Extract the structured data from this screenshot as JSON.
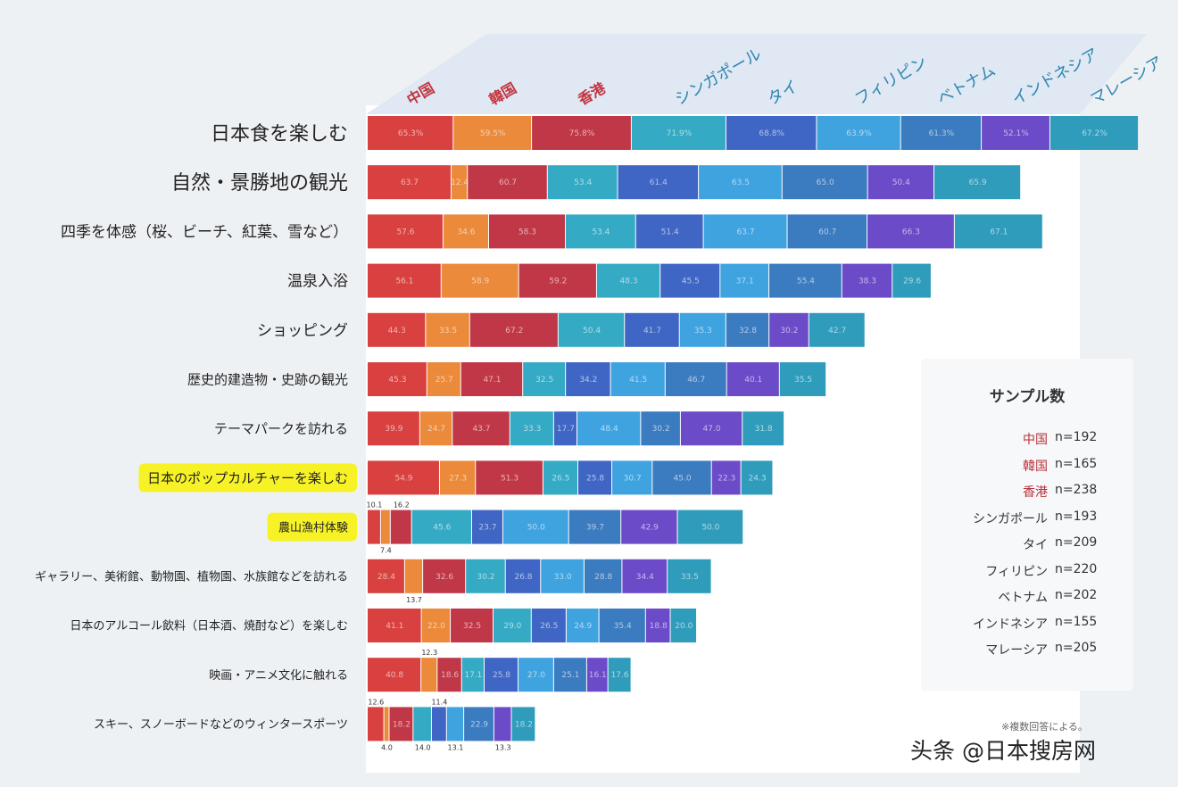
{
  "chart_data": {
    "type": "bar",
    "stacked": true,
    "orientation": "horizontal",
    "series": [
      {
        "name": "中国",
        "color": "#d8413f"
      },
      {
        "name": "韓国",
        "color": "#ea8a3a"
      },
      {
        "name": "香港",
        "color": "#c03848"
      },
      {
        "name": "シンガポール",
        "color": "#35aac4"
      },
      {
        "name": "タイ",
        "color": "#3f66c4"
      },
      {
        "name": "フィリピン",
        "color": "#3fa3e0"
      },
      {
        "name": "ベトナム",
        "color": "#3b7bbf"
      },
      {
        "name": "インドネシア",
        "color": "#6b4bc8"
      },
      {
        "name": "マレーシア",
        "color": "#2f9cbb"
      }
    ],
    "categories": [
      "日本食を楽しむ",
      "自然・景勝地の観光",
      "四季を体感（桜、ビーチ、紅葉、雪など）",
      "温泉入浴",
      "ショッピング",
      "歴史的建造物・史跡の観光",
      "テーマパークを訪れる",
      "日本のポップカルチャーを楽しむ",
      "農山漁村体験",
      "ギャラリー、美術館、動物園、植物園、水族館などを訪れる",
      "日本のアルコール飲料（日本酒、焼酎など）を楽しむ",
      "映画・アニメ文化に触れる",
      "スキー、スノーボードなどのウィンタースポーツ"
    ],
    "highlighted": [
      "日本のポップカルチャーを楽しむ",
      "農山漁村体験"
    ],
    "values": [
      [
        65.3,
        59.5,
        75.8,
        71.9,
        68.8,
        63.9,
        61.3,
        52.1,
        67.2
      ],
      [
        63.7,
        12.4,
        60.7,
        53.4,
        61.4,
        63.5,
        65.0,
        50.4,
        65.9
      ],
      [
        57.6,
        34.6,
        58.3,
        53.4,
        51.4,
        63.7,
        60.7,
        66.3,
        67.1
      ],
      [
        56.1,
        58.9,
        59.2,
        48.3,
        45.5,
        37.1,
        55.4,
        38.3,
        29.6
      ],
      [
        44.3,
        33.5,
        67.2,
        50.4,
        41.7,
        35.3,
        32.8,
        30.2,
        42.7
      ],
      [
        45.3,
        25.7,
        47.1,
        32.5,
        34.2,
        41.5,
        46.7,
        40.1,
        35.5
      ],
      [
        39.9,
        24.7,
        43.7,
        33.3,
        17.7,
        48.4,
        30.2,
        47.0,
        31.8
      ],
      [
        54.9,
        27.3,
        51.3,
        26.5,
        25.8,
        30.7,
        45.0,
        22.3,
        24.3
      ],
      [
        10.1,
        7.4,
        16.2,
        45.6,
        23.7,
        50.0,
        39.7,
        42.9,
        50.0
      ],
      [
        28.4,
        13.7,
        32.6,
        30.2,
        26.8,
        33.0,
        28.8,
        34.4,
        33.5
      ],
      [
        41.1,
        22.0,
        32.5,
        29.0,
        26.5,
        24.9,
        35.4,
        18.8,
        20.0
      ],
      [
        40.8,
        12.3,
        18.6,
        17.1,
        25.8,
        27.0,
        25.1,
        16.1,
        17.6
      ],
      [
        12.6,
        4.0,
        18.2,
        14.0,
        11.4,
        13.1,
        22.9,
        13.3,
        18.2
      ]
    ],
    "first_row_labels": [
      "65.3%",
      "59.5%",
      "75.8%",
      "71.9%",
      "68.8%",
      "63.9%",
      "61.3%",
      "52.1%",
      "67.2%"
    ],
    "outside_labels": [
      {
        "row": 8,
        "series": 0,
        "text": "10.1",
        "pos": "above"
      },
      {
        "row": 8,
        "series": 1,
        "text": "7.4",
        "pos": "below"
      },
      {
        "row": 8,
        "series": 2,
        "text": "16.2",
        "pos": "above"
      },
      {
        "row": 9,
        "series": 1,
        "text": "13.7",
        "pos": "below"
      },
      {
        "row": 11,
        "series": 1,
        "text": "12.3",
        "pos": "above"
      },
      {
        "row": 12,
        "series": 0,
        "text": "12.6",
        "pos": "above"
      },
      {
        "row": 12,
        "series": 1,
        "text": "4.0",
        "pos": "below"
      },
      {
        "row": 12,
        "series": 3,
        "text": "14.0",
        "pos": "below"
      },
      {
        "row": 12,
        "series": 4,
        "text": "11.4",
        "pos": "above"
      },
      {
        "row": 12,
        "series": 5,
        "text": "13.1",
        "pos": "below"
      },
      {
        "row": 12,
        "series": 7,
        "text": "13.3",
        "pos": "below"
      }
    ]
  },
  "legend": {
    "title": "サンプル数",
    "items": [
      {
        "name": "中国",
        "count": "n=192",
        "color": "#b8333c"
      },
      {
        "name": "韓国",
        "count": "n=165",
        "color": "#b8333c"
      },
      {
        "name": "香港",
        "count": "n=238",
        "color": "#b8333c"
      },
      {
        "name": "シンガポール",
        "count": "n=193",
        "color": "#333333"
      },
      {
        "name": "タイ",
        "count": "n=209",
        "color": "#333333"
      },
      {
        "name": "フィリピン",
        "count": "n=220",
        "color": "#333333"
      },
      {
        "name": "ベトナム",
        "count": "n=202",
        "color": "#333333"
      },
      {
        "name": "インドネシア",
        "count": "n=155",
        "color": "#333333"
      },
      {
        "name": "マレーシア",
        "count": "n=205",
        "color": "#333333"
      }
    ]
  },
  "footnote": "※複数回答による。",
  "watermark": "头条 @日本搜房网"
}
